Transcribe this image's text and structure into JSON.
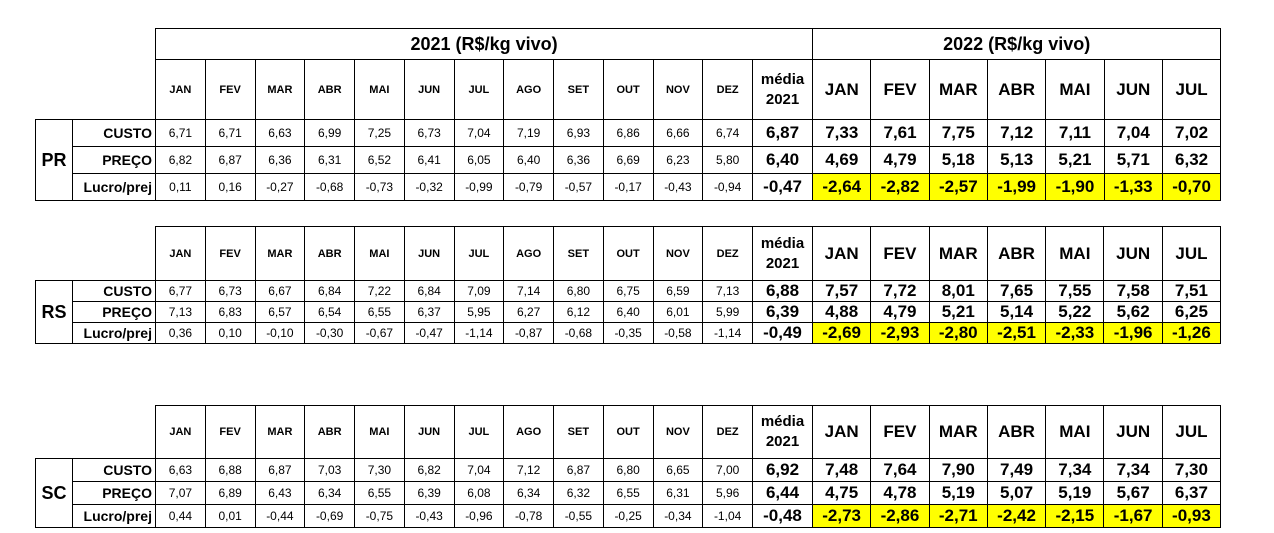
{
  "header": {
    "year2021": "2021  (R$/kg vivo)",
    "year2022": "2022 (R$/kg vivo)",
    "months2021": [
      "JAN",
      "FEV",
      "MAR",
      "ABR",
      "MAI",
      "JUN",
      "JUL",
      "AGO",
      "SET",
      "OUT",
      "NOV",
      "DEZ"
    ],
    "media": "média 2021",
    "months2022": [
      "JAN",
      "FEV",
      "MAR",
      "ABR",
      "MAI",
      "JUN",
      "JUL"
    ]
  },
  "regions": [
    {
      "name": "PR",
      "rows": [
        {
          "label": "CUSTO",
          "y2021": [
            "6,71",
            "6,71",
            "6,63",
            "6,99",
            "7,25",
            "6,73",
            "7,04",
            "7,19",
            "6,93",
            "6,86",
            "6,66",
            "6,74"
          ],
          "media": "6,87",
          "y2022": [
            "7,33",
            "7,61",
            "7,75",
            "7,12",
            "7,11",
            "7,04",
            "7,02"
          ]
        },
        {
          "label": "PREÇO",
          "y2021": [
            "6,82",
            "6,87",
            "6,36",
            "6,31",
            "6,52",
            "6,41",
            "6,05",
            "6,40",
            "6,36",
            "6,69",
            "6,23",
            "5,80"
          ],
          "media": "6,40",
          "y2022": [
            "4,69",
            "4,79",
            "5,18",
            "5,13",
            "5,21",
            "5,71",
            "6,32"
          ]
        },
        {
          "label": "Lucro/prej",
          "y2021": [
            "0,11",
            "0,16",
            "-0,27",
            "-0,68",
            "-0,73",
            "-0,32",
            "-0,99",
            "-0,79",
            "-0,57",
            "-0,17",
            "-0,43",
            "-0,94"
          ],
          "media": "-0,47",
          "y2022": [
            "-2,64",
            "-2,82",
            "-2,57",
            "-1,99",
            "-1,90",
            "-1,33",
            "-0,70"
          ]
        }
      ]
    },
    {
      "name": "RS",
      "rows": [
        {
          "label": "CUSTO",
          "y2021": [
            "6,77",
            "6,73",
            "6,67",
            "6,84",
            "7,22",
            "6,84",
            "7,09",
            "7,14",
            "6,80",
            "6,75",
            "6,59",
            "7,13"
          ],
          "media": "6,88",
          "y2022": [
            "7,57",
            "7,72",
            "8,01",
            "7,65",
            "7,55",
            "7,58",
            "7,51"
          ]
        },
        {
          "label": "PREÇO",
          "y2021": [
            "7,13",
            "6,83",
            "6,57",
            "6,54",
            "6,55",
            "6,37",
            "5,95",
            "6,27",
            "6,12",
            "6,40",
            "6,01",
            "5,99"
          ],
          "media": "6,39",
          "y2022": [
            "4,88",
            "4,79",
            "5,21",
            "5,14",
            "5,22",
            "5,62",
            "6,25"
          ]
        },
        {
          "label": "Lucro/prej",
          "y2021": [
            "0,36",
            "0,10",
            "-0,10",
            "-0,30",
            "-0,67",
            "-0,47",
            "-1,14",
            "-0,87",
            "-0,68",
            "-0,35",
            "-0,58",
            "-1,14"
          ],
          "media": "-0,49",
          "y2022": [
            "-2,69",
            "-2,93",
            "-2,80",
            "-2,51",
            "-2,33",
            "-1,96",
            "-1,26"
          ]
        }
      ]
    },
    {
      "name": "SC",
      "rows": [
        {
          "label": "CUSTO",
          "y2021": [
            "6,63",
            "6,88",
            "6,87",
            "7,03",
            "7,30",
            "6,82",
            "7,04",
            "7,12",
            "6,87",
            "6,80",
            "6,65",
            "7,00"
          ],
          "media": "6,92",
          "y2022": [
            "7,48",
            "7,64",
            "7,90",
            "7,49",
            "7,34",
            "7,34",
            "7,30"
          ]
        },
        {
          "label": "PREÇO",
          "y2021": [
            "7,07",
            "6,89",
            "6,43",
            "6,34",
            "6,55",
            "6,39",
            "6,08",
            "6,34",
            "6,32",
            "6,55",
            "6,31",
            "5,96"
          ],
          "media": "6,44",
          "y2022": [
            "4,75",
            "4,78",
            "5,19",
            "5,07",
            "5,19",
            "5,67",
            "6,37"
          ]
        },
        {
          "label": "Lucro/prej",
          "y2021": [
            "0,44",
            "0,01",
            "-0,44",
            "-0,69",
            "-0,75",
            "-0,43",
            "-0,96",
            "-0,78",
            "-0,55",
            "-0,25",
            "-0,34",
            "-1,04"
          ],
          "media": "-0,48",
          "y2022": [
            "-2,73",
            "-2,86",
            "-2,71",
            "-2,42",
            "-2,15",
            "-1,67",
            "-0,93"
          ]
        }
      ]
    }
  ]
}
